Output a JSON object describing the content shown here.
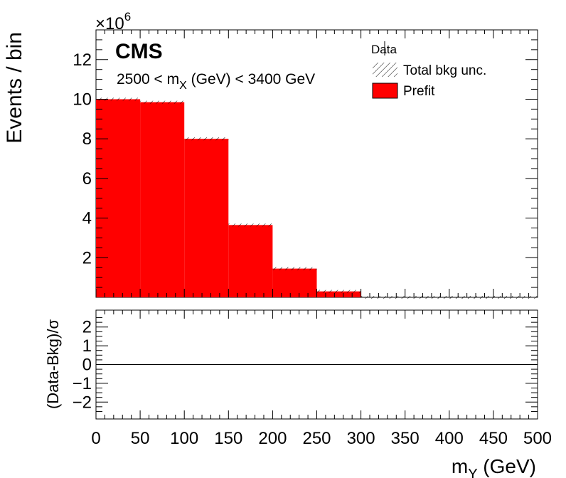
{
  "chart_data": [
    {
      "type": "bar",
      "panel": "main",
      "experiment_label": "CMS",
      "annotation": {
        "prefix": "2500 < m",
        "sub": "X",
        "suffix": " (GeV) < 3400 GeV"
      },
      "ylabel": "Events / bin",
      "y_exponent_label": {
        "base": "×10",
        "exp": "6"
      },
      "xlim": [
        0,
        500
      ],
      "ylim": [
        0,
        13.5
      ],
      "y_unit_multiplier": 1000000,
      "y_ticks": [
        2,
        4,
        6,
        8,
        10,
        12
      ],
      "bin_edges": [
        0,
        50,
        100,
        150,
        200,
        250,
        300,
        350,
        400,
        450,
        500
      ],
      "series": [
        {
          "name": "Prefit",
          "color": "#ff0000",
          "values": [
            10.0,
            9.85,
            8.0,
            3.65,
            1.45,
            0.3,
            0,
            0,
            0,
            0
          ]
        }
      ],
      "uncertainty_band": {
        "name": "Total bkg unc.",
        "style": "hatched",
        "values": [
          10.0,
          9.85,
          8.0,
          3.65,
          1.45,
          0.3,
          0,
          0,
          0,
          0
        ]
      },
      "legend": {
        "placement": "top-right",
        "entries": [
          {
            "label": "Data",
            "style": "marker"
          },
          {
            "label": "Total bkg unc.",
            "style": "hatched"
          },
          {
            "label": "Prefit",
            "style": "fill",
            "color": "#ff0000"
          }
        ]
      }
    },
    {
      "type": "line",
      "panel": "ratio",
      "ylabel": "(Data-Bkg)/σ",
      "xlabel": {
        "main": "m",
        "sub": "Y",
        "suffix": " (GeV)"
      },
      "xlim": [
        0,
        500
      ],
      "ylim": [
        -2.9,
        2.9
      ],
      "x_ticks": [
        0,
        50,
        100,
        150,
        200,
        250,
        300,
        350,
        400,
        450,
        500
      ],
      "y_ticks": [
        -2,
        -1,
        0,
        1,
        2
      ],
      "y_tick_labels": [
        "−2",
        "−1",
        "0",
        "1",
        "2"
      ],
      "reference_line": 0
    }
  ]
}
